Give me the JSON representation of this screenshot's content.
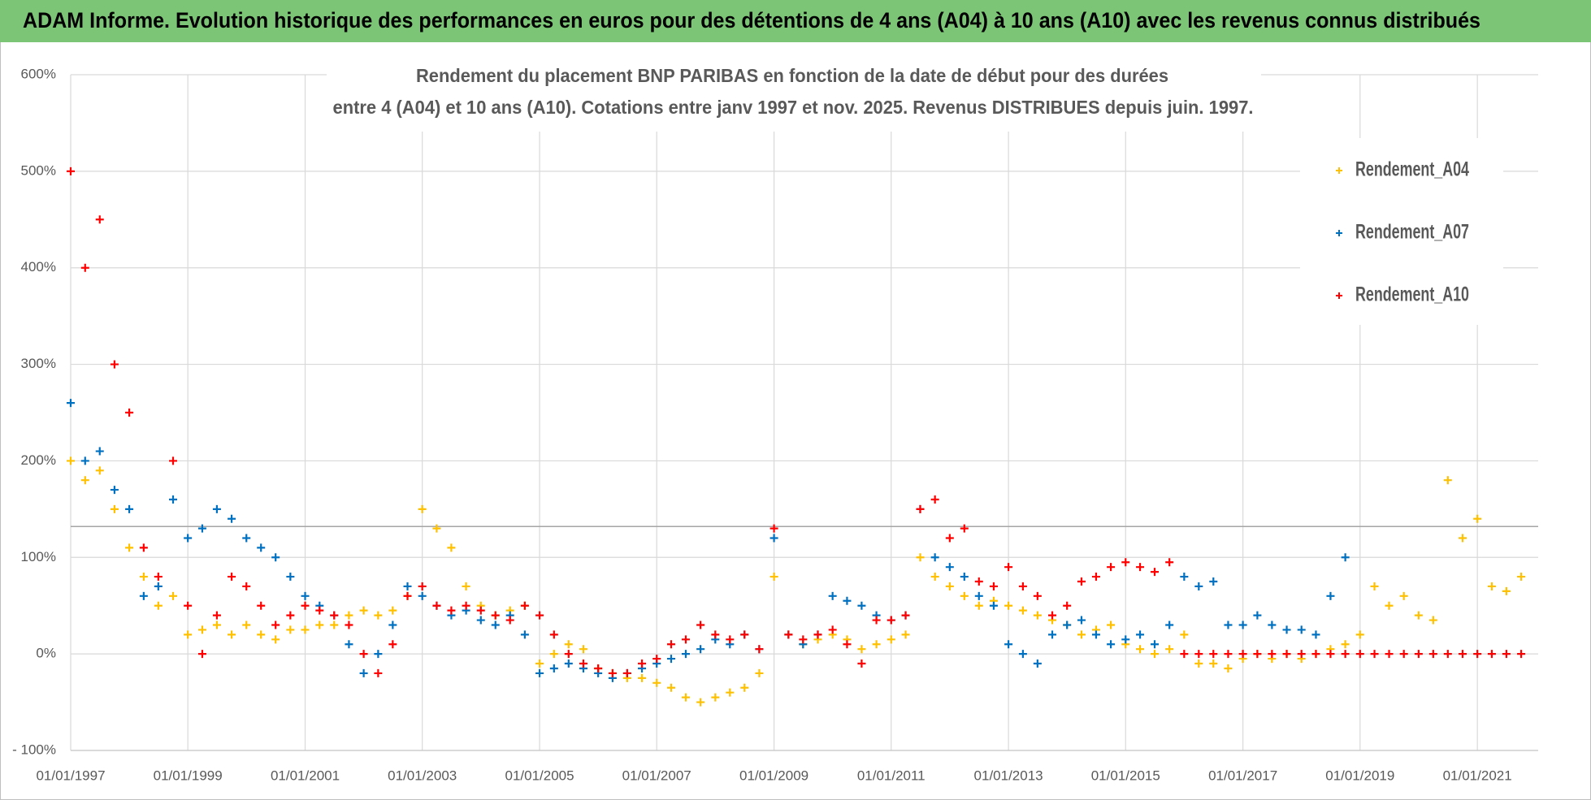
{
  "chart_data": {
    "type": "scatter",
    "title": "ADAM Informe. Evolution historique des performances en euros pour des détentions de 4 ans (A04) à 10 ans (A10) avec les revenus connus distribués",
    "subtitle": [
      "Rendement du placement BNP PARIBAS en fonction de la date de début pour des durées",
      "entre 4 (A04) et 10 ans (A10).  Cotations entre janv 1997 et nov. 2025. Revenus DISTRIBUES depuis juin. 1997."
    ],
    "x": [
      "1997-01-01",
      "1997-04-01",
      "1997-07-01",
      "1997-10-01",
      "1998-01-01",
      "1998-04-01",
      "1998-07-01",
      "1998-10-01",
      "1999-01-01",
      "1999-04-01",
      "1999-07-01",
      "1999-10-01",
      "2000-01-01",
      "2000-04-01",
      "2000-07-01",
      "2000-10-01",
      "2001-01-01",
      "2001-04-01",
      "2001-07-01",
      "2001-10-01",
      "2002-01-01",
      "2002-04-01",
      "2002-07-01",
      "2002-10-01",
      "2003-01-01",
      "2003-04-01",
      "2003-07-01",
      "2003-10-01",
      "2004-01-01",
      "2004-04-01",
      "2004-07-01",
      "2004-10-01",
      "2005-01-01",
      "2005-04-01",
      "2005-07-01",
      "2005-10-01",
      "2006-01-01",
      "2006-04-01",
      "2006-07-01",
      "2006-10-01",
      "2007-01-01",
      "2007-04-01",
      "2007-07-01",
      "2007-10-01",
      "2008-01-01",
      "2008-04-01",
      "2008-07-01",
      "2008-10-01",
      "2009-01-01",
      "2009-04-01",
      "2009-07-01",
      "2009-10-01",
      "2010-01-01",
      "2010-04-01",
      "2010-07-01",
      "2010-10-01",
      "2011-01-01",
      "2011-04-01",
      "2011-07-01",
      "2011-10-01",
      "2012-01-01",
      "2012-04-01",
      "2012-07-01",
      "2012-10-01",
      "2013-01-01",
      "2013-04-01",
      "2013-07-01",
      "2013-10-01",
      "2014-01-01",
      "2014-04-01",
      "2014-07-01",
      "2014-10-01",
      "2015-01-01",
      "2015-04-01",
      "2015-07-01",
      "2015-10-01",
      "2016-01-01",
      "2016-04-01",
      "2016-07-01",
      "2016-10-01",
      "2017-01-01",
      "2017-04-01",
      "2017-07-01",
      "2017-10-01",
      "2018-01-01",
      "2018-04-01",
      "2018-07-01",
      "2018-10-01",
      "2019-01-01",
      "2019-04-01",
      "2019-07-01",
      "2019-10-01",
      "2020-01-01",
      "2020-04-01",
      "2020-07-01",
      "2020-10-01",
      "2021-01-01",
      "2021-04-01",
      "2021-07-01",
      "2021-10-01"
    ],
    "series": [
      {
        "name": "Rendement_A04",
        "color": "#ffc000",
        "values": [
          200,
          180,
          190,
          150,
          110,
          80,
          50,
          60,
          20,
          25,
          30,
          20,
          30,
          20,
          15,
          25,
          25,
          30,
          30,
          40,
          45,
          40,
          45,
          60,
          150,
          130,
          110,
          70,
          50,
          40,
          45,
          50,
          -10,
          0,
          10,
          5,
          -15,
          -20,
          -25,
          -25,
          -30,
          -35,
          -45,
          -50,
          -45,
          -40,
          -35,
          -20,
          80,
          20,
          10,
          15,
          20,
          15,
          5,
          10,
          15,
          20,
          100,
          80,
          70,
          60,
          50,
          55,
          50,
          45,
          40,
          35,
          30,
          20,
          25,
          30,
          10,
          5,
          0,
          5,
          20,
          -10,
          -10,
          -15,
          -5,
          0,
          -5,
          0,
          -5,
          0,
          5,
          10,
          20,
          70,
          50,
          60,
          40,
          35,
          180,
          120,
          140,
          70,
          65,
          80
        ]
      },
      {
        "name": "Rendement_A07",
        "color": "#0070c0",
        "values": [
          260,
          200,
          210,
          170,
          150,
          60,
          70,
          160,
          120,
          130,
          150,
          140,
          120,
          110,
          100,
          80,
          60,
          50,
          40,
          10,
          -20,
          0,
          30,
          70,
          60,
          50,
          40,
          45,
          35,
          30,
          40,
          20,
          -20,
          -15,
          -10,
          -15,
          -20,
          -25,
          -20,
          -15,
          -10,
          -5,
          0,
          5,
          15,
          10,
          20,
          5,
          120,
          20,
          10,
          20,
          60,
          55,
          50,
          40,
          35,
          40,
          150,
          100,
          90,
          80,
          60,
          50,
          10,
          0,
          -10,
          20,
          30,
          35,
          20,
          10,
          15,
          20,
          10,
          30,
          80,
          70,
          75,
          30,
          30,
          40,
          30,
          25,
          25,
          20,
          60,
          100,
          null,
          null,
          null,
          null,
          null,
          null,
          null,
          null,
          null,
          null,
          null,
          null
        ]
      },
      {
        "name": "Rendement_A10",
        "color": "#ff0000",
        "values": [
          500,
          400,
          450,
          300,
          250,
          110,
          80,
          200,
          50,
          0,
          40,
          80,
          70,
          50,
          30,
          40,
          50,
          45,
          40,
          30,
          0,
          -20,
          10,
          60,
          70,
          50,
          45,
          50,
          45,
          40,
          35,
          50,
          40,
          20,
          0,
          -10,
          -15,
          -20,
          -20,
          -10,
          -5,
          10,
          15,
          30,
          20,
          15,
          20,
          5,
          130,
          20,
          15,
          20,
          25,
          10,
          -10,
          35,
          35,
          40,
          150,
          160,
          120,
          130,
          75,
          70,
          90,
          70,
          60,
          40,
          50,
          75,
          80,
          90,
          95,
          90,
          85,
          95,
          0,
          0,
          0,
          0,
          0,
          0,
          0,
          0,
          0,
          0,
          0,
          0,
          0,
          0,
          0,
          0,
          0,
          0,
          0,
          0,
          0,
          0,
          0,
          0
        ]
      }
    ],
    "xlim": [
      "1997-01-01",
      "2022-01-15"
    ],
    "xticks": [
      {
        "value": "1997-01-01",
        "label": "01/01/1997"
      },
      {
        "value": "1999-01-01",
        "label": "01/01/1999"
      },
      {
        "value": "2001-01-01",
        "label": "01/01/2001"
      },
      {
        "value": "2003-01-01",
        "label": "01/01/2003"
      },
      {
        "value": "2005-01-01",
        "label": "01/01/2005"
      },
      {
        "value": "2007-01-01",
        "label": "01/01/2007"
      },
      {
        "value": "2009-01-01",
        "label": "01/01/2009"
      },
      {
        "value": "2011-01-01",
        "label": "01/01/2011"
      },
      {
        "value": "2013-01-01",
        "label": "01/01/2013"
      },
      {
        "value": "2015-01-01",
        "label": "01/01/2015"
      },
      {
        "value": "2017-01-01",
        "label": "01/01/2017"
      },
      {
        "value": "2019-01-01",
        "label": "01/01/2019"
      },
      {
        "value": "2021-01-01",
        "label": "01/01/2021"
      }
    ],
    "ylim": [
      -100,
      600
    ],
    "yticks": [
      {
        "value": -100,
        "label": "- 100%"
      },
      {
        "value": 0,
        "label": "0%"
      },
      {
        "value": 100,
        "label": "100%"
      },
      {
        "value": 200,
        "label": "200%"
      },
      {
        "value": 300,
        "label": "300%"
      },
      {
        "value": 400,
        "label": "400%"
      },
      {
        "value": 500,
        "label": "500%"
      },
      {
        "value": 600,
        "label": "600%"
      }
    ],
    "reference_lines": [
      132
    ],
    "grid": true,
    "legend": "right"
  }
}
